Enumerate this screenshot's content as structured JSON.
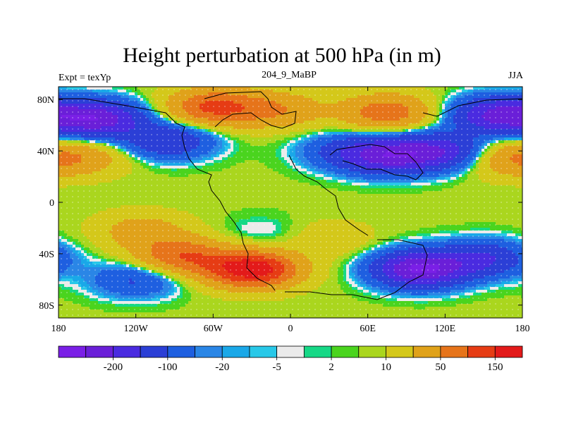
{
  "chart_data": {
    "type": "heatmap",
    "title": "Height perturbation at 500 hPa (in m)",
    "left_string": "Expt = texYp",
    "center_string": "204_9_MaBP",
    "right_string": "JJA",
    "x_ticks": [
      {
        "value": -180,
        "label": "180"
      },
      {
        "value": -120,
        "label": "120W"
      },
      {
        "value": -60,
        "label": "60W"
      },
      {
        "value": 0,
        "label": "0"
      },
      {
        "value": 60,
        "label": "60E"
      },
      {
        "value": 120,
        "label": "120E"
      },
      {
        "value": 180,
        "label": "180"
      }
    ],
    "y_ticks": [
      {
        "value": 80,
        "label": "80N"
      },
      {
        "value": 40,
        "label": "40N"
      },
      {
        "value": 0,
        "label": "0"
      },
      {
        "value": -40,
        "label": "40S"
      },
      {
        "value": -80,
        "label": "80S"
      }
    ],
    "xlim": [
      -180,
      180
    ],
    "ylim": [
      -90,
      90
    ],
    "levels": [
      -200,
      -150,
      -100,
      -50,
      -20,
      -10,
      -5,
      -2,
      2,
      5,
      10,
      20,
      50,
      100,
      150,
      200
    ],
    "colors": [
      "#7a1fe6",
      "#6a1fd8",
      "#4a2be0",
      "#2b3fd6",
      "#1e5fe0",
      "#2a86e6",
      "#1aa8e8",
      "#28c8e8",
      "#ebebeb",
      "#16d886",
      "#4ad41e",
      "#aad61e",
      "#d4c81a",
      "#e0a21a",
      "#e6741a",
      "#e63c14",
      "#e31a1a"
    ],
    "colorbar_labels": [
      {
        "after_box": 2,
        "label": "-200"
      },
      {
        "after_box": 4,
        "label": "-100"
      },
      {
        "after_box": 6,
        "label": "-20"
      },
      {
        "after_box": 8,
        "label": "-5"
      },
      {
        "after_box": 10,
        "label": "2"
      },
      {
        "after_box": 12,
        "label": "10"
      },
      {
        "after_box": 14,
        "label": "50"
      },
      {
        "after_box": 16,
        "label": "150"
      }
    ],
    "field_anomalies": [
      {
        "lon": -150,
        "lat": 65,
        "value": -190
      },
      {
        "lon": -95,
        "lat": 48,
        "value": -110
      },
      {
        "lon": -60,
        "lat": 74,
        "value": 150
      },
      {
        "lon": -10,
        "lat": 72,
        "value": 80
      },
      {
        "lon": 75,
        "lat": 70,
        "value": 120
      },
      {
        "lon": 160,
        "lat": 68,
        "value": -170
      },
      {
        "lon": 40,
        "lat": 40,
        "value": -60
      },
      {
        "lon": 75,
        "lat": 36,
        "value": -160
      },
      {
        "lon": 115,
        "lat": 40,
        "value": -140
      },
      {
        "lon": -160,
        "lat": 35,
        "value": 55
      },
      {
        "lon": 170,
        "lat": 34,
        "value": 70
      },
      {
        "lon": -115,
        "lat": -22,
        "value": 60
      },
      {
        "lon": -30,
        "lat": -52,
        "value": 230
      },
      {
        "lon": -85,
        "lat": -42,
        "value": 130
      },
      {
        "lon": -120,
        "lat": -60,
        "value": -70
      },
      {
        "lon": 100,
        "lat": -52,
        "value": -220
      },
      {
        "lon": 150,
        "lat": -44,
        "value": -110
      },
      {
        "lon": 30,
        "lat": -28,
        "value": 30
      },
      {
        "lon": -20,
        "lat": -25,
        "value": -20
      }
    ]
  }
}
